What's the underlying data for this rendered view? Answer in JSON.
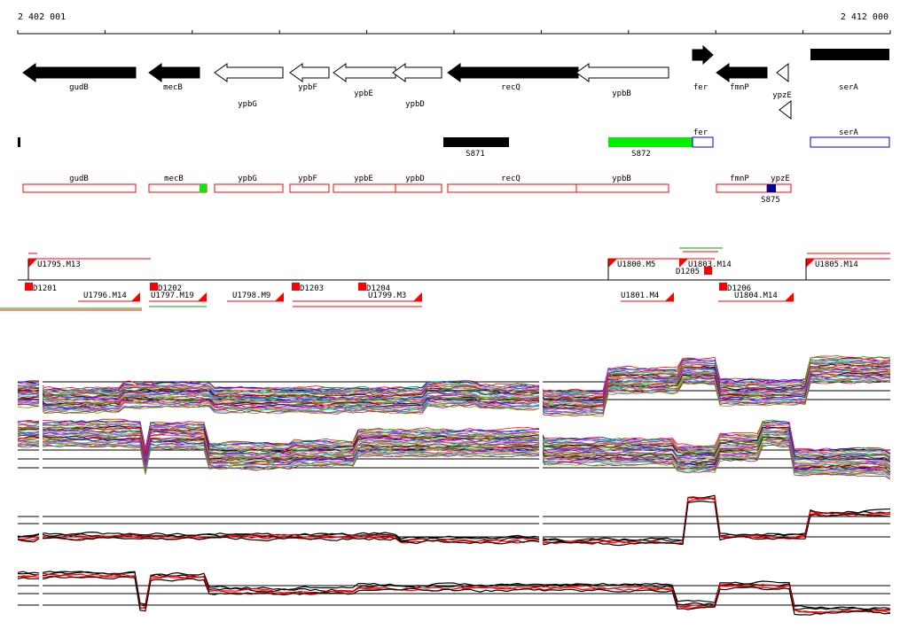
{
  "coordinates": {
    "start": "2 402 001",
    "end": "2 412 000"
  },
  "genes": [
    {
      "name": "gudB",
      "strand": "-",
      "fill": "black"
    },
    {
      "name": "mecB",
      "strand": "-",
      "fill": "black"
    },
    {
      "name": "ypbG",
      "strand": "-",
      "fill": "white"
    },
    {
      "name": "ypbF",
      "strand": "-",
      "fill": "white"
    },
    {
      "name": "ypbE",
      "strand": "-",
      "fill": "white"
    },
    {
      "name": "ypbD",
      "strand": "-",
      "fill": "white"
    },
    {
      "name": "recQ",
      "strand": "-",
      "fill": "black"
    },
    {
      "name": "ypbB",
      "strand": "-",
      "fill": "white"
    },
    {
      "name": "fer",
      "strand": "+",
      "fill": "black"
    },
    {
      "name": "fmnP",
      "strand": "-",
      "fill": "black"
    },
    {
      "name": "ypzE",
      "strand": "-",
      "fill": "white"
    },
    {
      "name": "serA",
      "strand": "-",
      "fill": "black"
    }
  ],
  "segments": [
    {
      "label": "S871",
      "color": "#000000"
    },
    {
      "label": "S872",
      "color": "#00ee00"
    },
    {
      "label": "fer",
      "color": "#0000cc"
    },
    {
      "label": "serA",
      "color": "#0000cc"
    }
  ],
  "annotations": [
    {
      "label": "gudB"
    },
    {
      "label": "mecB"
    },
    {
      "label": "ypbG"
    },
    {
      "label": "ypbF"
    },
    {
      "label": "ypbE"
    },
    {
      "label": "ypbD"
    },
    {
      "label": "recQ"
    },
    {
      "label": "ypbB"
    },
    {
      "label": "fmnP"
    },
    {
      "label": "ypzE"
    },
    {
      "label": "S875"
    }
  ],
  "transcripts_upper": [
    "U1795.M13",
    "U1800.M5",
    "U1803.M14",
    "U1805.M14"
  ],
  "transcripts_lower": [
    "U1796.M14",
    "U1797.M19",
    "U1798.M9",
    "U1799.M3",
    "U1801.M4",
    "U1804.M14"
  ],
  "downshifts": [
    "D1201",
    "D1202",
    "D1203",
    "D1204",
    "D1205",
    "D1206"
  ],
  "colors": {
    "gene_black": "#000000",
    "feature_red": "#ff0000",
    "segment_green": "#00ee00",
    "segment_blue": "#0000cc",
    "track_red": "#ff0000"
  }
}
